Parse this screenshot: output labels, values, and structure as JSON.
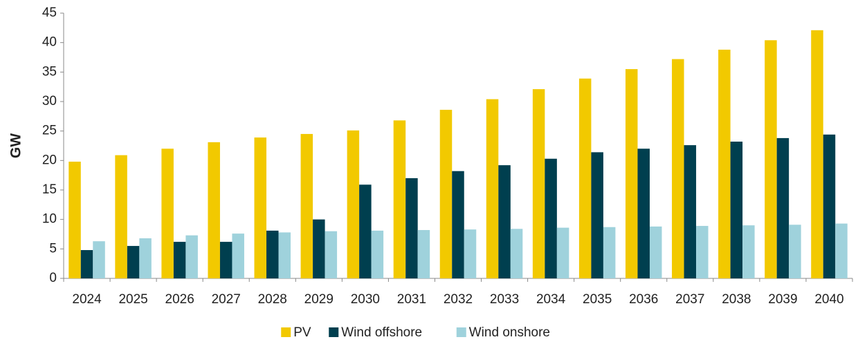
{
  "chart_data": {
    "type": "bar",
    "y_label": "GW",
    "categories": [
      "2024",
      "2025",
      "2026",
      "2027",
      "2028",
      "2029",
      "2030",
      "2031",
      "2032",
      "2033",
      "2034",
      "2035",
      "2036",
      "2037",
      "2038",
      "2039",
      "2040"
    ],
    "series": [
      {
        "name": "PV",
        "color": "#f2c900",
        "values": [
          19.8,
          20.9,
          22.0,
          23.1,
          23.9,
          24.5,
          25.1,
          26.8,
          28.6,
          30.4,
          32.1,
          33.9,
          35.5,
          37.2,
          38.8,
          40.4,
          42.1
        ]
      },
      {
        "name": "Wind offshore",
        "color": "#003f4f",
        "values": [
          4.8,
          5.5,
          6.2,
          6.2,
          8.1,
          10.0,
          15.9,
          17.0,
          18.2,
          19.2,
          20.3,
          21.4,
          22.0,
          22.6,
          23.2,
          23.8,
          24.4
        ]
      },
      {
        "name": "Wind onshore",
        "color": "#9fd2dc",
        "values": [
          6.3,
          6.8,
          7.3,
          7.6,
          7.8,
          8.0,
          8.1,
          8.2,
          8.3,
          8.4,
          8.6,
          8.7,
          8.8,
          8.9,
          9.0,
          9.1,
          9.3
        ]
      }
    ],
    "ylim": [
      0,
      45
    ],
    "yticks": [
      0,
      5,
      10,
      15,
      20,
      25,
      30,
      35,
      40,
      45
    ],
    "grid": false,
    "legend": "bottom"
  }
}
